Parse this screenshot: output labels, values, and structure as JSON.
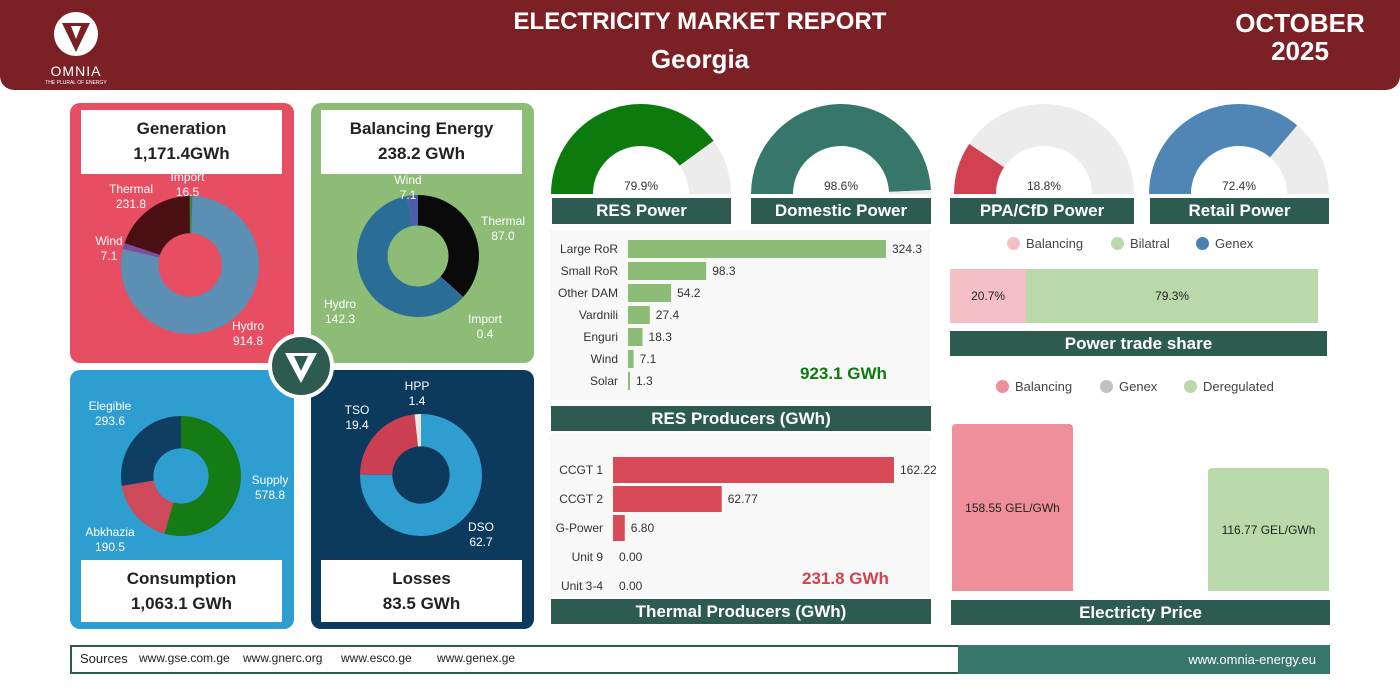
{
  "header": {
    "title": "ELECTRICITY MARKET REPORT",
    "country": "Georgia",
    "month": "OCTOBER",
    "year": "2025",
    "brand": "OMNIA",
    "tagline": "THE PLURAL OF ENERGY"
  },
  "colors": {
    "header": "#7b2126",
    "dark_green": "#2e5b50",
    "red_panel": "#e84e61",
    "green_panel": "#8dbc77",
    "blue_panel": "#2e9dcf",
    "navy_panel": "#0b3a5c"
  },
  "generation": {
    "title": "Generation",
    "total": "1,171.4GWh",
    "slices": [
      {
        "label": "Hydro",
        "value": "914.8",
        "v": 914.8,
        "color": "#5b8fb3"
      },
      {
        "label": "Import",
        "value": "16.5",
        "v": 16.5,
        "color": "#7a4e9e"
      },
      {
        "label": "Thermal",
        "value": "231.8",
        "v": 231.8,
        "color": "#4a0f12"
      },
      {
        "label": "Wind",
        "value": "7.1",
        "v": 7.1,
        "color": "#2e8a3e"
      }
    ]
  },
  "balancing": {
    "title": "Balancing Energy",
    "total": "238.2 GWh",
    "slices": [
      {
        "label": "Thermal",
        "value": "87.0",
        "v": 87.0,
        "color": "#0a0a0a"
      },
      {
        "label": "Import",
        "value": "0.4",
        "v": 0.4,
        "color": "#5a5ab0"
      },
      {
        "label": "Hydro",
        "value": "142.3",
        "v": 142.3,
        "color": "#2a6d96"
      },
      {
        "label": "Wind",
        "value": "7.1",
        "v": 7.1,
        "color": "#4b5ea8"
      }
    ]
  },
  "consumption": {
    "title": "Consumption",
    "total": "1,063.1 GWh",
    "slices": [
      {
        "label": "Supply",
        "value": "578.8",
        "v": 578.8,
        "color": "#167a15"
      },
      {
        "label": "Abkhazia",
        "value": "190.5",
        "v": 190.5,
        "color": "#cc4a5a"
      },
      {
        "label": "Elegible",
        "value": "293.6",
        "v": 293.6,
        "color": "#0e3f63"
      }
    ]
  },
  "losses": {
    "title": "Losses",
    "total": "83.5 GWh",
    "slices": [
      {
        "label": "DSO",
        "value": "62.7",
        "v": 62.7,
        "color": "#2e9dcf"
      },
      {
        "label": "TSO",
        "value": "19.4",
        "v": 19.4,
        "color": "#cc3f52"
      },
      {
        "label": "HPP",
        "value": "1.4",
        "v": 1.4,
        "color": "#e8e8e8"
      }
    ]
  },
  "gauges": [
    {
      "title": "RES Power",
      "label": "79.9%",
      "v": 79.9,
      "color": "#0d7a0d"
    },
    {
      "title": "Domestic Power",
      "label": "98.6%",
      "v": 98.6,
      "color": "#37766a"
    },
    {
      "title": "PPA/CfD Power",
      "label": "18.8%",
      "v": 18.8,
      "color": "#d2414f"
    },
    {
      "title": "Retail Power",
      "label": "72.4%",
      "v": 72.4,
      "color": "#4f86b5"
    }
  ],
  "chart_data": [
    {
      "type": "pie",
      "title": "Generation",
      "categories": [
        "Hydro",
        "Import",
        "Thermal",
        "Wind"
      ],
      "values": [
        914.8,
        16.5,
        231.8,
        7.1
      ]
    },
    {
      "type": "pie",
      "title": "Balancing Energy",
      "categories": [
        "Thermal",
        "Import",
        "Hydro",
        "Wind"
      ],
      "values": [
        87.0,
        0.4,
        142.3,
        7.1
      ]
    },
    {
      "type": "pie",
      "title": "Consumption",
      "categories": [
        "Supply",
        "Abkhazia",
        "Elegible"
      ],
      "values": [
        578.8,
        190.5,
        293.6
      ]
    },
    {
      "type": "pie",
      "title": "Losses",
      "categories": [
        "DSO",
        "TSO",
        "HPP"
      ],
      "values": [
        62.7,
        19.4,
        1.4
      ]
    },
    {
      "type": "bar",
      "title": "RES Producers (GWh)",
      "categories": [
        "Large RoR",
        "Small RoR",
        "Other DAM",
        "Vardnili",
        "Enguri",
        "Wind",
        "Solar"
      ],
      "values": [
        324.3,
        98.3,
        54.2,
        27.4,
        18.3,
        7.1,
        1.3
      ]
    },
    {
      "type": "bar",
      "title": "Thermal Producers (GWh)",
      "categories": [
        "CCGT 1",
        "CCGT 2",
        "G-Power",
        "Unit 9",
        "Unit 3-4"
      ],
      "values": [
        162.22,
        62.77,
        6.8,
        0,
        0
      ]
    },
    {
      "type": "bar",
      "title": "Power trade share",
      "categories": [
        "Balancing",
        "Bilatral"
      ],
      "values": [
        20.7,
        79.3
      ]
    },
    {
      "type": "bar",
      "title": "Electricty Price",
      "categories": [
        "Balancing",
        "Deregulated"
      ],
      "values": [
        158.55,
        116.77
      ]
    }
  ],
  "res": {
    "title": "RES Producers (GWh)",
    "total": "923.1 GWh",
    "labels": [
      "Large RoR",
      "Small RoR",
      "Other DAM",
      "Vardnili",
      "Enguri",
      "Wind",
      "Solar"
    ],
    "vals": [
      "324.3",
      "98.3",
      "54.2",
      "27.4",
      "18.3",
      "7.1",
      "1.3"
    ],
    "nums": [
      324.3,
      98.3,
      54.2,
      27.4,
      18.3,
      7.1,
      1.3
    ]
  },
  "thermal": {
    "title": "Thermal Producers (GWh)",
    "total": "231.8 GWh",
    "labels": [
      "CCGT 1",
      "CCGT 2",
      "G-Power",
      "Unit 9",
      "Unit 3-4"
    ],
    "vals": [
      "162.22",
      "62.77",
      "6.80",
      "0.00",
      "0.00"
    ],
    "nums": [
      162.22,
      62.77,
      6.8,
      0,
      0
    ]
  },
  "trade": {
    "title": "Power trade share",
    "legend": [
      "Balancing",
      "Bilatral",
      "Genex"
    ],
    "legend_colors": [
      "#f5c0c5",
      "#b9d9aa",
      "#4a7fb0"
    ],
    "bal": "20.7%",
    "bil": "79.3%",
    "bal_v": 20.7
  },
  "price": {
    "title": "Electricty Price",
    "legend": [
      "Balancing",
      "Genex",
      "Deregulated"
    ],
    "legend_colors": [
      "#ef8f9a",
      "#c0c0c0",
      "#b9d9aa"
    ],
    "bal": "158.55 GEL/GWh",
    "dereg": "116.77 GEL/GWh"
  },
  "footer": {
    "sources": "Sources",
    "links": [
      "www.gse.com.ge",
      "www.gnerc.org",
      "www.esco.ge",
      "www.genex.ge"
    ],
    "site": "www.omnia-energy.eu"
  }
}
